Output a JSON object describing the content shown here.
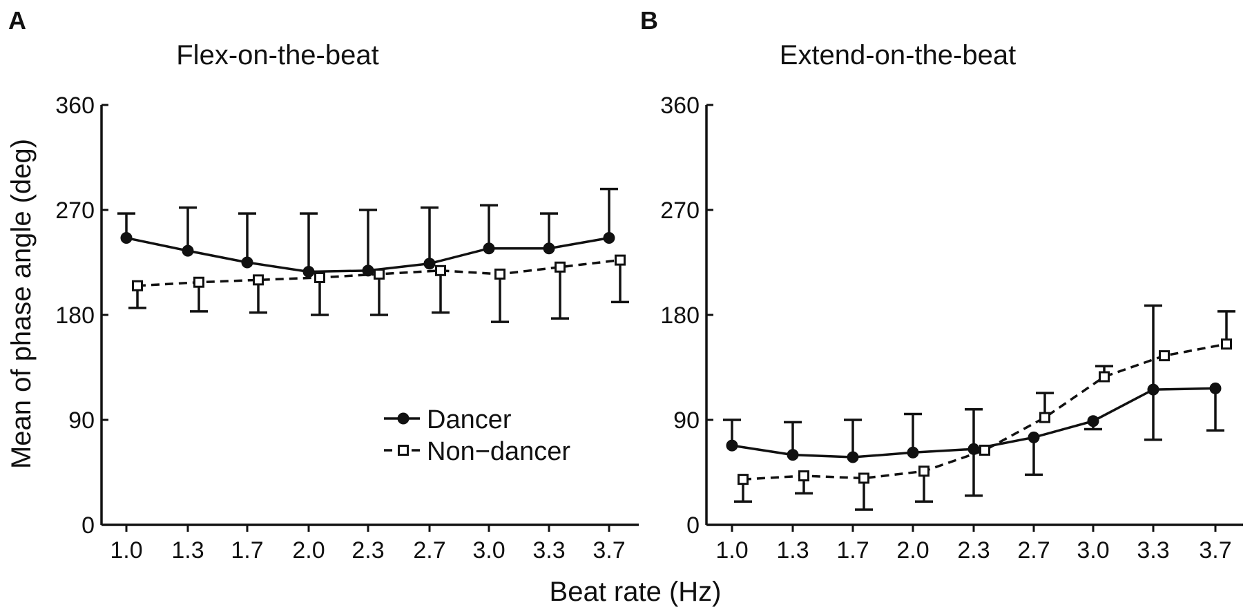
{
  "figure": {
    "xlabel": "Beat rate (Hz)",
    "ylabel": "Mean of phase angle (deg)",
    "legend": {
      "dancer": "Dancer",
      "non_dancer": "Non−dancer"
    }
  },
  "chart_data": [
    {
      "type": "line",
      "panel_letter": "A",
      "title": "Flex-on-the-beat",
      "xlabel": "Beat rate (Hz)",
      "ylabel": "Mean of phase angle (deg)",
      "categories": [
        "1.0",
        "1.3",
        "1.7",
        "2.0",
        "2.3",
        "2.7",
        "3.0",
        "3.3",
        "3.7"
      ],
      "yticks": [
        "0",
        "90",
        "180",
        "270",
        "360"
      ],
      "ylim": [
        0,
        360
      ],
      "legend_position": "bottom-right",
      "series": [
        {
          "name": "Dancer",
          "marker": "filled-circle",
          "line": "solid",
          "values": [
            246,
            235,
            225,
            217,
            218,
            224,
            237,
            237,
            246
          ],
          "error_upper": [
            267,
            272,
            267,
            267,
            270,
            272,
            274,
            267,
            288
          ]
        },
        {
          "name": "Non−dancer",
          "marker": "open-square",
          "line": "dashed",
          "values": [
            205,
            208,
            210,
            212,
            215,
            218,
            215,
            221,
            227
          ],
          "error_lower": [
            186,
            183,
            182,
            180,
            180,
            182,
            174,
            177,
            191
          ]
        }
      ]
    },
    {
      "type": "line",
      "panel_letter": "B",
      "title": "Extend-on-the-beat",
      "xlabel": "Beat rate (Hz)",
      "ylabel": "",
      "categories": [
        "1.0",
        "1.3",
        "1.7",
        "2.0",
        "2.3",
        "2.7",
        "3.0",
        "3.3",
        "3.7"
      ],
      "yticks": [
        "0",
        "90",
        "180",
        "270",
        "360"
      ],
      "ylim": [
        0,
        360
      ],
      "series": [
        {
          "name": "Dancer",
          "marker": "filled-circle",
          "line": "solid",
          "values": [
            68,
            60,
            58,
            62,
            65,
            75,
            89,
            116,
            117
          ],
          "error_lower": [
            null,
            null,
            null,
            null,
            25,
            43,
            82,
            73,
            81
          ],
          "error_upper": [
            90,
            88,
            90,
            95,
            99,
            null,
            null,
            188,
            null
          ]
        },
        {
          "name": "Non−dancer",
          "marker": "open-square",
          "line": "dashed",
          "values": [
            39,
            42,
            40,
            46,
            64,
            92,
            127,
            145,
            155
          ],
          "error_lower": [
            20,
            27,
            13,
            20,
            null,
            null,
            null,
            null,
            null
          ],
          "error_upper": [
            null,
            null,
            null,
            null,
            null,
            113,
            136,
            null,
            183
          ]
        }
      ]
    }
  ]
}
